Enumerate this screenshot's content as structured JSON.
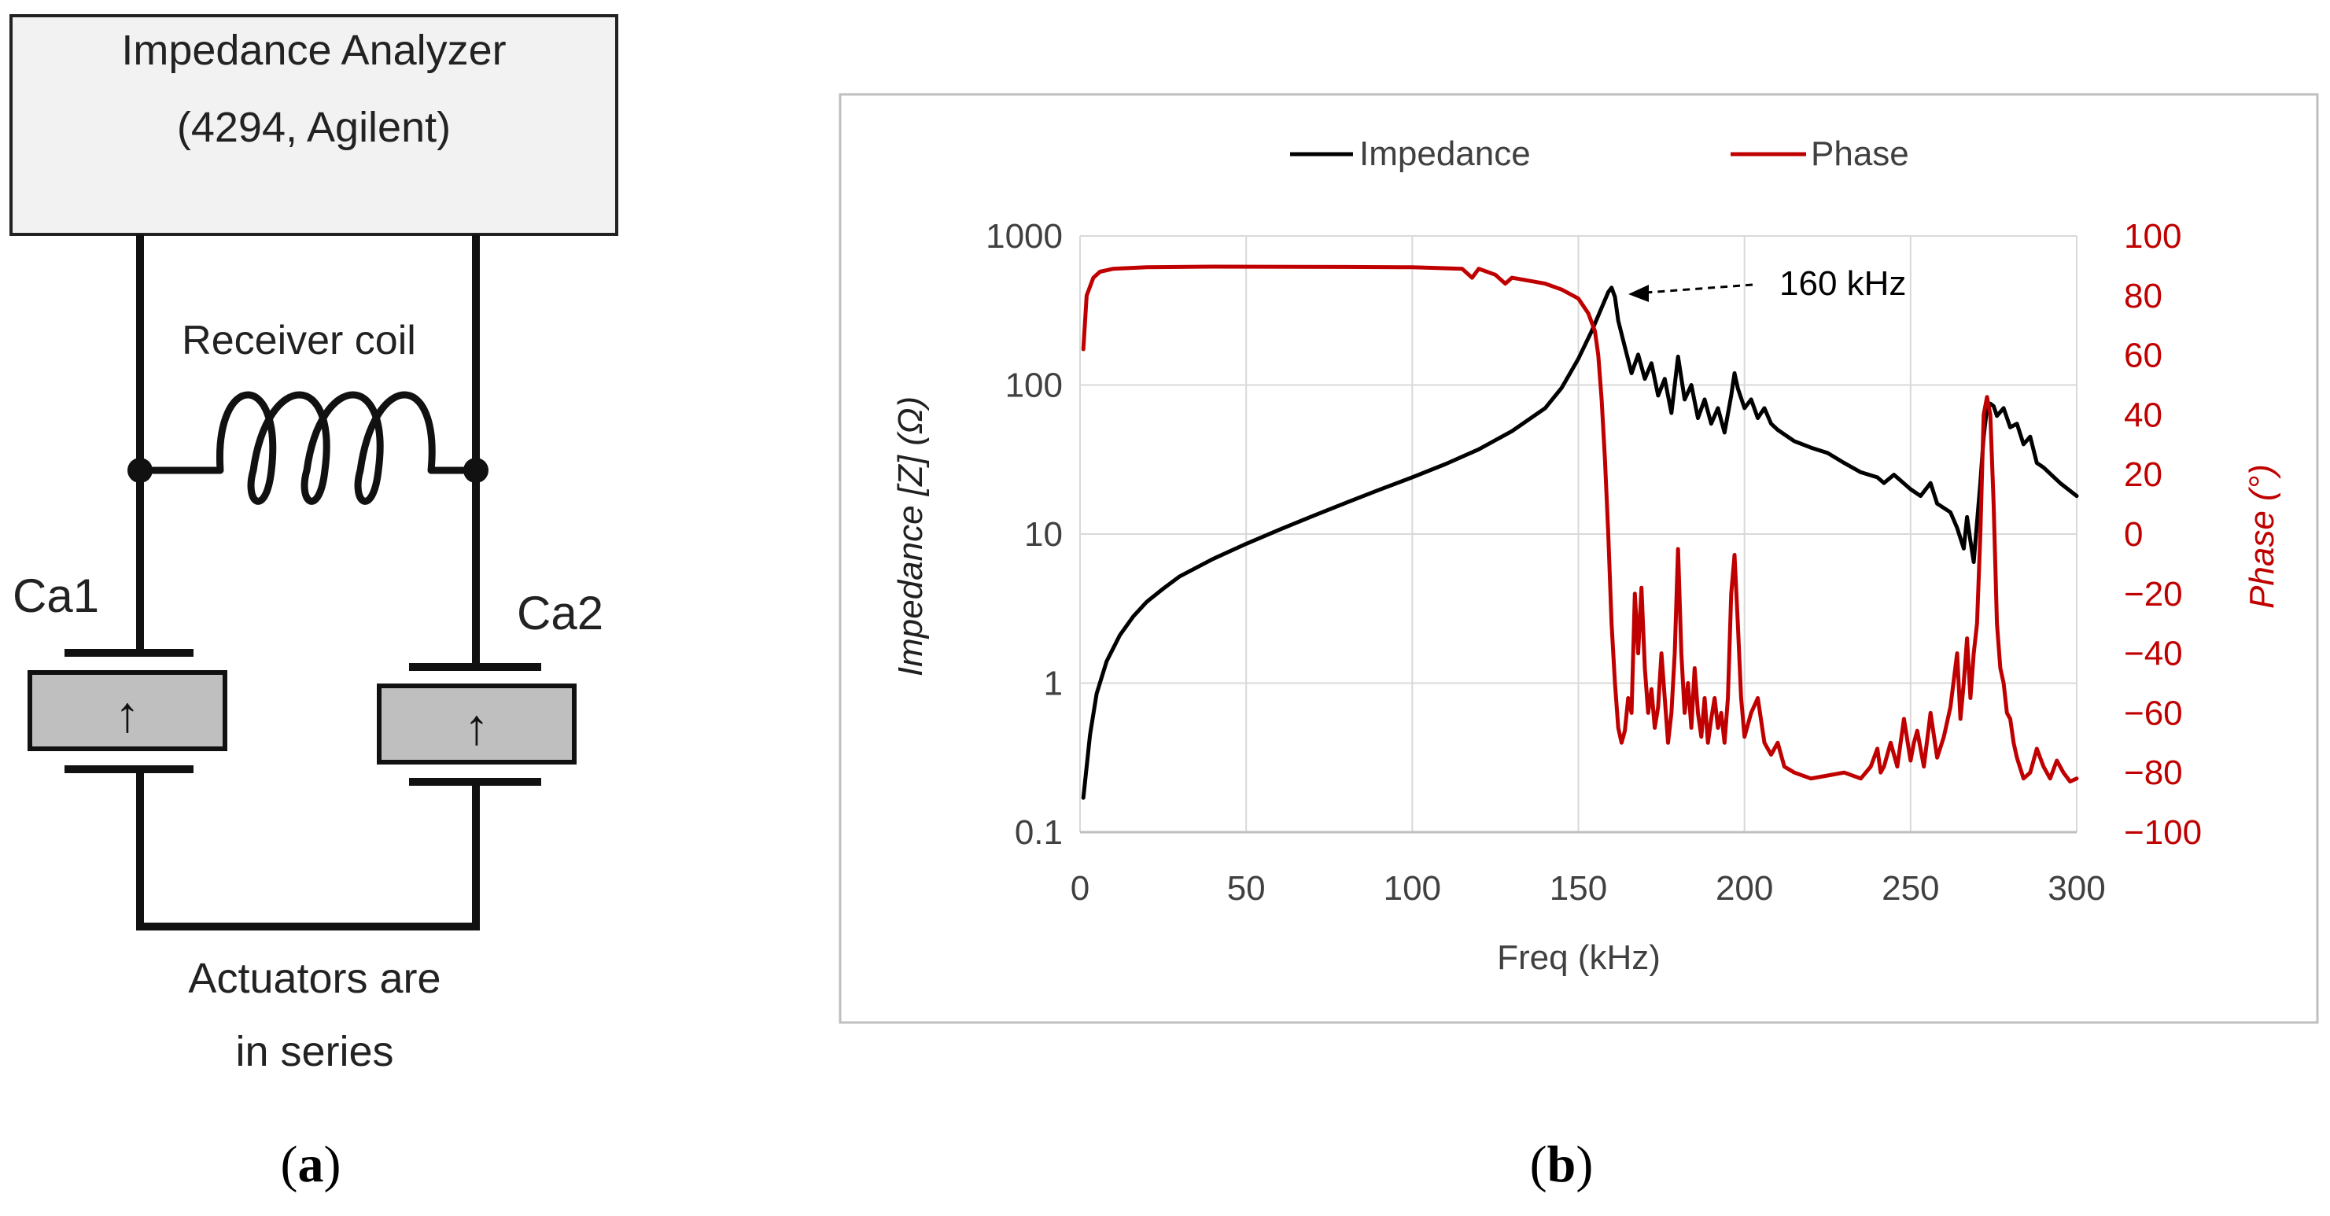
{
  "panel_a": {
    "analyzer_line1": "Impedance Analyzer",
    "analyzer_line2": "(4294, Agilent)",
    "coil_label": "Receiver coil",
    "actuator_left_label": "Ca1",
    "actuator_right_label": "Ca2",
    "polarity_symbol": "↑",
    "caption_line1": "Actuators are",
    "caption_line2": "in series",
    "sublabel": "(a)",
    "sublabel_letter": "a"
  },
  "panel_b": {
    "sublabel": "(b)",
    "sublabel_letter": "b"
  },
  "colors": {
    "impedance": "#000000",
    "phase": "#c00000",
    "box_fill": "#f2f2f2",
    "actuator_fill": "#bfbfbf",
    "grid": "#d9d9d9",
    "frame": "#bfbfbf",
    "text": "#404040"
  },
  "chart_data": {
    "type": "line",
    "xlabel": "Freq (kHz)",
    "ylabel": "Impedance [Z] (Ω)",
    "y2label": "Phase (°)",
    "xlim": [
      0,
      300
    ],
    "xticks": [
      "0",
      "50",
      "100",
      "150",
      "200",
      "250",
      "300"
    ],
    "ylim": [
      0.1,
      1000
    ],
    "yscale": "log",
    "yticks": [
      "0.1",
      "1",
      "10",
      "100",
      "1000"
    ],
    "y2lim": [
      -100,
      100
    ],
    "y2ticks": [
      "−100",
      "−80",
      "−60",
      "−40",
      "−20",
      "0",
      "20",
      "40",
      "60",
      "80",
      "100"
    ],
    "legend": [
      "Impedance",
      "Phase"
    ],
    "legend_position": "top",
    "annotation": "160 kHz",
    "series": [
      {
        "name": "Impedance",
        "axis": "left",
        "x": [
          1,
          3,
          5,
          8,
          12,
          16,
          20,
          25,
          30,
          40,
          50,
          60,
          70,
          80,
          90,
          100,
          110,
          120,
          130,
          140,
          145,
          150,
          154,
          157,
          159,
          160,
          161,
          162,
          164,
          166,
          168,
          170,
          172,
          174,
          176,
          178,
          179,
          180,
          182,
          184,
          186,
          188,
          190,
          192,
          194,
          196,
          197,
          198,
          200,
          202,
          204,
          206,
          208,
          210,
          215,
          220,
          225,
          230,
          235,
          240,
          242,
          245,
          250,
          253,
          256,
          258,
          262,
          264,
          266,
          267,
          268,
          269,
          270,
          271,
          272,
          273,
          274,
          275,
          276,
          278,
          280,
          282,
          284,
          286,
          288,
          290,
          295,
          300
        ],
        "values": [
          0.17,
          0.45,
          0.85,
          1.4,
          2.1,
          2.8,
          3.5,
          4.3,
          5.2,
          6.8,
          8.6,
          10.7,
          13.2,
          16.2,
          19.8,
          24,
          29.5,
          37,
          49,
          70,
          96,
          150,
          230,
          330,
          420,
          450,
          390,
          270,
          180,
          120,
          160,
          110,
          140,
          85,
          110,
          65,
          100,
          155,
          80,
          100,
          60,
          80,
          55,
          70,
          48,
          85,
          120,
          95,
          70,
          80,
          60,
          70,
          55,
          50,
          42,
          38,
          35,
          30,
          26,
          24,
          22,
          25,
          20,
          18,
          22,
          16,
          14,
          11,
          8,
          13,
          9,
          6.5,
          12,
          22,
          45,
          70,
          75,
          72,
          62,
          70,
          52,
          55,
          40,
          45,
          30,
          28,
          22,
          18
        ]
      },
      {
        "name": "Phase",
        "axis": "right",
        "x": [
          1,
          2,
          4,
          6,
          10,
          20,
          40,
          80,
          100,
          115,
          118,
          120,
          125,
          128,
          130,
          140,
          145,
          150,
          153,
          155,
          156,
          157,
          158,
          159,
          160,
          161,
          162,
          163,
          164,
          165,
          166,
          167,
          168,
          169,
          170,
          171,
          172,
          173,
          174,
          175,
          176,
          177,
          178,
          179,
          180,
          181,
          182,
          183,
          184,
          185,
          186,
          187,
          188,
          189,
          190,
          191,
          192,
          193,
          194,
          195,
          196,
          197,
          198,
          199,
          200,
          202,
          204,
          206,
          208,
          210,
          212,
          215,
          220,
          225,
          230,
          235,
          238,
          240,
          241,
          242,
          244,
          246,
          248,
          250,
          251,
          252,
          254,
          256,
          258,
          260,
          262,
          264,
          265,
          266,
          267,
          268,
          269,
          270,
          271,
          272,
          273,
          274,
          275,
          276,
          277,
          278,
          279,
          280,
          281,
          282,
          284,
          286,
          288,
          290,
          292,
          294,
          296,
          298,
          300
        ],
        "values": [
          62,
          80,
          86,
          88,
          89,
          89.5,
          89.7,
          89.6,
          89.5,
          89,
          86,
          89,
          87,
          84,
          86,
          84,
          82,
          79,
          74,
          68,
          60,
          45,
          25,
          0,
          -30,
          -50,
          -65,
          -70,
          -66,
          -55,
          -60,
          -20,
          -40,
          -18,
          -45,
          -60,
          -52,
          -65,
          -58,
          -40,
          -55,
          -70,
          -60,
          -40,
          -5,
          -40,
          -60,
          -50,
          -65,
          -45,
          -60,
          -68,
          -55,
          -70,
          -62,
          -55,
          -65,
          -60,
          -70,
          -55,
          -20,
          -7,
          -30,
          -55,
          -68,
          -60,
          -55,
          -70,
          -74,
          -70,
          -78,
          -80,
          -82,
          -81,
          -80,
          -82,
          -78,
          -72,
          -80,
          -78,
          -70,
          -78,
          -62,
          -76,
          -70,
          -66,
          -78,
          -60,
          -75,
          -68,
          -58,
          -40,
          -62,
          -50,
          -35,
          -55,
          -40,
          -30,
          0,
          40,
          46,
          40,
          10,
          -30,
          -45,
          -50,
          -60,
          -62,
          -70,
          -75,
          -82,
          -80,
          -72,
          -78,
          -82,
          -76,
          -80,
          -83,
          -82
        ]
      }
    ]
  }
}
